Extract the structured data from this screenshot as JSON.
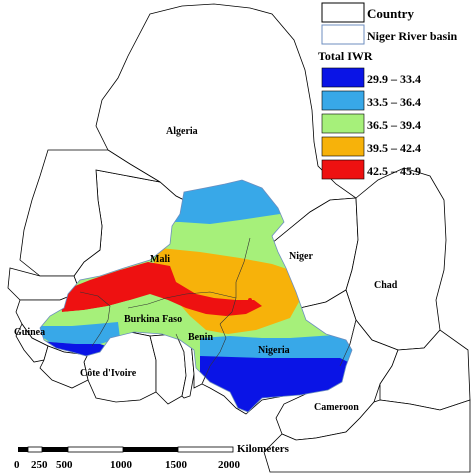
{
  "map": {
    "countries": [
      {
        "key": "algeria",
        "name": "Algeria"
      },
      {
        "key": "mali",
        "name": "Mali"
      },
      {
        "key": "niger",
        "name": "Niger"
      },
      {
        "key": "chad",
        "name": "Chad"
      },
      {
        "key": "guinea",
        "name": "Guinea"
      },
      {
        "key": "burkina",
        "name": "Burkina Faso"
      },
      {
        "key": "benin",
        "name": "Benin"
      },
      {
        "key": "nigeria",
        "name": "Nigeria"
      },
      {
        "key": "cotedivoire",
        "name": "Côte d'Ivoire"
      },
      {
        "key": "cameroon",
        "name": "Cameroon"
      }
    ]
  },
  "legend": {
    "country_label": "Country",
    "basin_label": "Niger River basin",
    "title": "Total IWR",
    "classes": [
      {
        "range": "29.9 – 33.4",
        "color": "#0a14e6"
      },
      {
        "range": "33.5 – 36.4",
        "color": "#38a8e8"
      },
      {
        "range": "36.5 – 39.4",
        "color": "#a6f07a"
      },
      {
        "range": "39.5 – 42.4",
        "color": "#f7b20a"
      },
      {
        "range": "42.5 – 45.9",
        "color": "#ee1111"
      }
    ]
  },
  "scale_bar": {
    "unit": "Kilometers",
    "ticks": [
      "0",
      "250",
      "500",
      "1000",
      "1500",
      "2000"
    ]
  }
}
